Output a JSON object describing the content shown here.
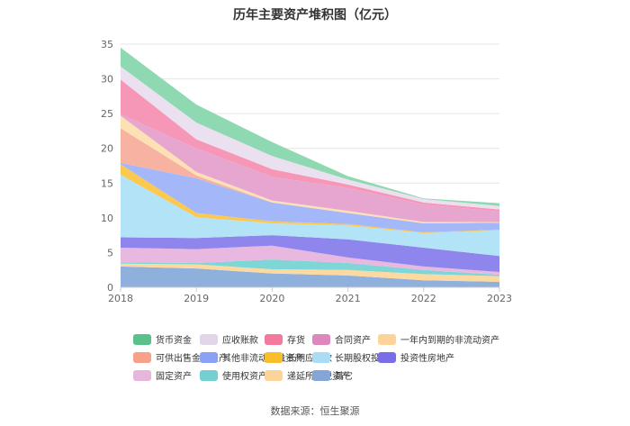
{
  "chart_data": {
    "type": "area",
    "stacked": true,
    "title": "历年主要资产堆积图（亿元）",
    "xlabel": "",
    "ylabel": "",
    "categories": [
      "2018",
      "2019",
      "2020",
      "2021",
      "2022",
      "2023"
    ],
    "ylim": [
      0,
      35
    ],
    "yticks": [
      0,
      5,
      10,
      15,
      20,
      25,
      30,
      35
    ],
    "grid": true,
    "legend_position": "bottom",
    "series": [
      {
        "name": "其它",
        "color": "#8fb0dc",
        "values": [
          3.0,
          2.7,
          2.0,
          1.7,
          1.0,
          0.8
        ]
      },
      {
        "name": "递延所得税资产",
        "color": "#fcd9a0",
        "values": [
          0.4,
          0.6,
          0.6,
          0.8,
          0.9,
          0.8
        ]
      },
      {
        "name": "使用权资产",
        "color": "#7fd6d6",
        "values": [
          0.2,
          0.2,
          1.4,
          1.0,
          0.6,
          0.2
        ]
      },
      {
        "name": "固定资产",
        "color": "#e8b8e0",
        "values": [
          2.1,
          2.0,
          2.0,
          0.8,
          0.5,
          0.4
        ]
      },
      {
        "name": "投资性房地产",
        "color": "#8e86ec",
        "values": [
          1.5,
          1.6,
          1.5,
          2.6,
          2.7,
          2.3
        ]
      },
      {
        "name": "长期股权投资",
        "color": "#b3e3f7",
        "values": [
          9.0,
          3.0,
          1.7,
          2.0,
          2.1,
          3.7
        ]
      },
      {
        "name": "长期应收款",
        "color": "#fcc94f",
        "values": [
          1.5,
          0.6,
          0.3,
          0.2,
          0.1,
          0.1
        ]
      },
      {
        "name": "其他非流动金融资产",
        "color": "#a4b7f9",
        "values": [
          0.2,
          5.0,
          2.7,
          1.6,
          1.3,
          1.0
        ]
      },
      {
        "name": "可供出售金融资产",
        "color": "#f7b2a1",
        "values": [
          5.0,
          0.4,
          0.0,
          0.0,
          0.0,
          0.0
        ]
      },
      {
        "name": "一年内到期的非流动资产",
        "color": "#fde1b4",
        "values": [
          1.8,
          0.5,
          0.3,
          0.3,
          0.2,
          0.1
        ]
      },
      {
        "name": "合同资产",
        "color": "#e7a6d0",
        "values": [
          0.2,
          3.4,
          3.4,
          3.3,
          2.5,
          1.5
        ]
      },
      {
        "name": "存货",
        "color": "#f797b8",
        "values": [
          5.0,
          1.3,
          1.1,
          0.5,
          0.3,
          0.3
        ]
      },
      {
        "name": "应收账款",
        "color": "#ebe0ef",
        "values": [
          1.9,
          2.4,
          1.9,
          0.7,
          0.5,
          0.5
        ]
      },
      {
        "name": "货币资金",
        "color": "#8fd9b2",
        "values": [
          2.7,
          2.6,
          2.0,
          0.5,
          0.1,
          0.4
        ]
      }
    ],
    "legend_order": [
      "货币资金",
      "应收账款",
      "存货",
      "合同资产",
      "一年内到期的非流动资产",
      "可供出售金融资产",
      "其他非流动金融资产",
      "长期应收款",
      "长期股权投资",
      "投资性房地产",
      "固定资产",
      "使用权资产",
      "递延所得税资产",
      "其它"
    ]
  },
  "legend_swatches": {
    "货币资金": "#5cc08a",
    "应收账款": "#e2d5ea",
    "存货": "#f47a9d",
    "合同资产": "#de86be",
    "一年内到期的非流动资产": "#fdd39a",
    "可供出售金融资产": "#f7a08a",
    "其他非流动金融资产": "#8aa2f5",
    "长期应收款": "#f9be2c",
    "长期股权投资": "#a8ddf5",
    "投资性房地产": "#7a6ee8",
    "固定资产": "#e6b6dd",
    "使用权资产": "#74d0d0",
    "递延所得税资产": "#fbd49a",
    "其它": "#84a6d6"
  },
  "source": "数据来源：恒生聚源"
}
